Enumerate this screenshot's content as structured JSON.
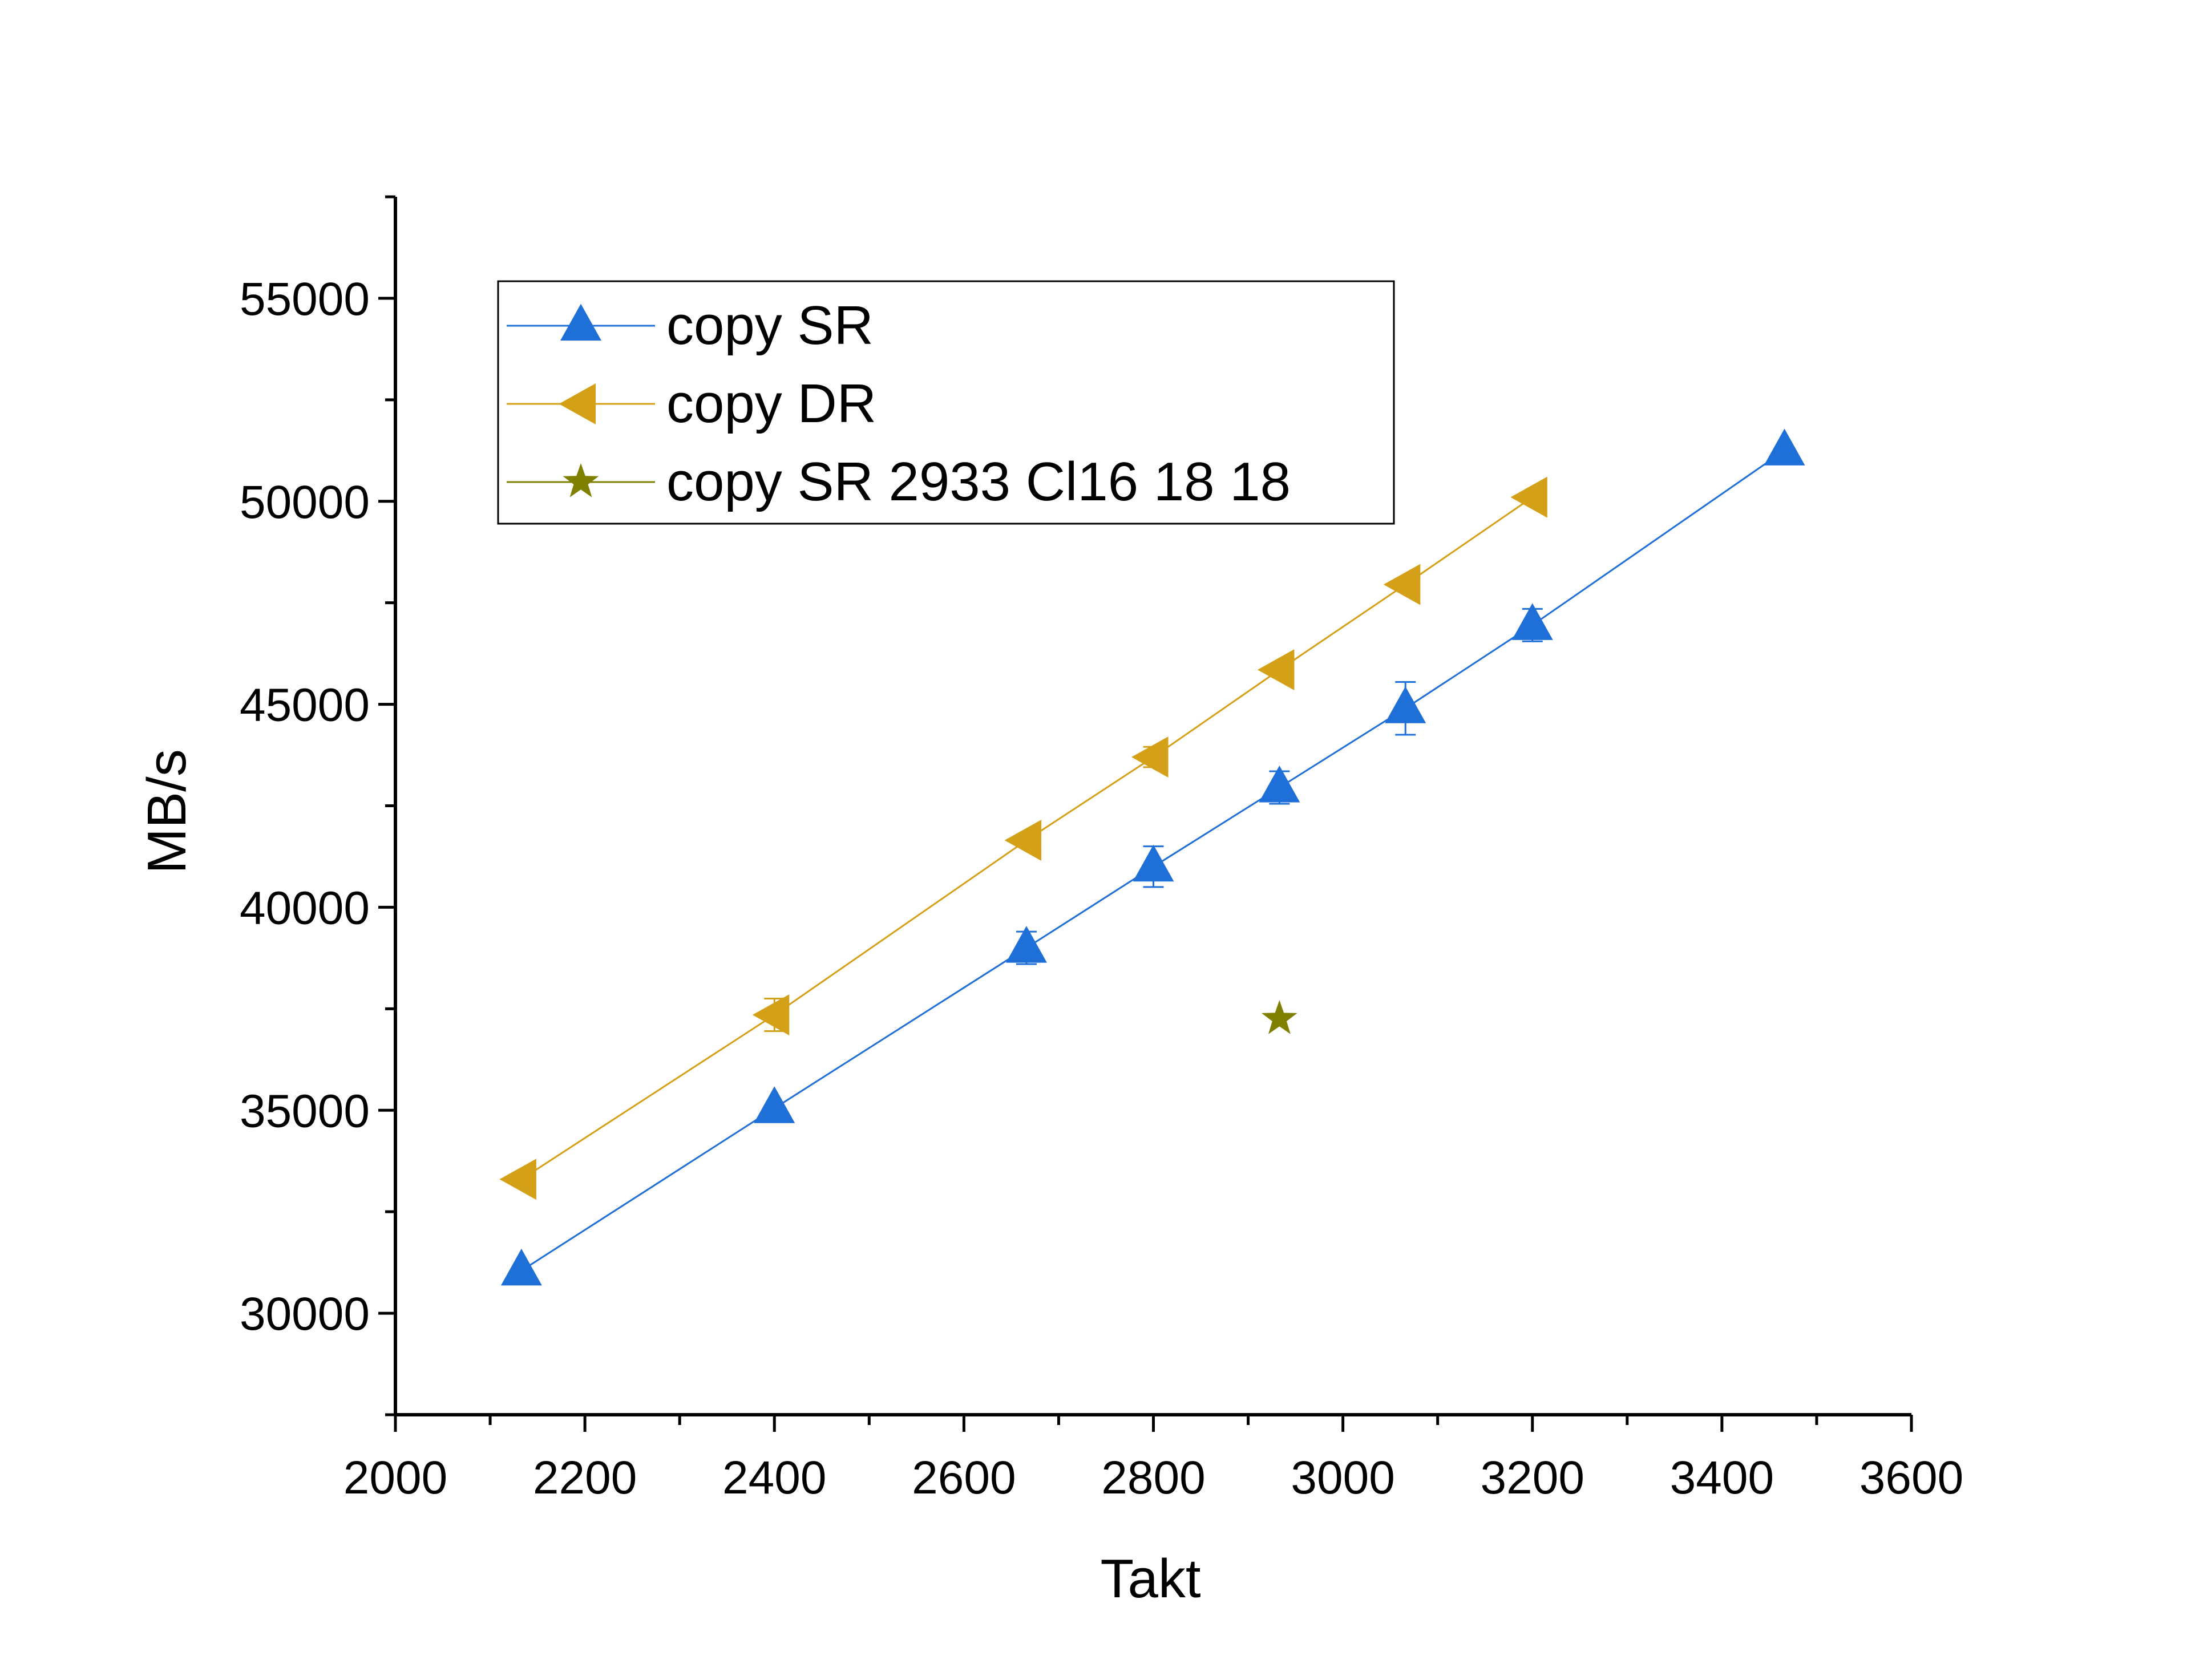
{
  "chart_data": {
    "type": "line",
    "title": "",
    "xlabel": "Takt",
    "ylabel": "MB/s",
    "xlim": [
      2000,
      3600
    ],
    "ylim": [
      27500,
      57500
    ],
    "x_ticks": [
      2000,
      2200,
      2400,
      2600,
      2800,
      3000,
      3200,
      3400,
      3600
    ],
    "y_ticks": [
      30000,
      35000,
      40000,
      45000,
      50000,
      55000
    ],
    "grid": false,
    "legend_position": "top-left",
    "series": [
      {
        "name": "copy SR",
        "color": "#1f6fd8",
        "marker": "triangle-up",
        "line": true,
        "points": [
          {
            "x": 2133,
            "y": 31050,
            "err": 0
          },
          {
            "x": 2400,
            "y": 35050,
            "err": 0
          },
          {
            "x": 2666,
            "y": 39000,
            "err": 400
          },
          {
            "x": 2800,
            "y": 41000,
            "err": 500
          },
          {
            "x": 2933,
            "y": 42950,
            "err": 400
          },
          {
            "x": 3066,
            "y": 44900,
            "err": 650
          },
          {
            "x": 3200,
            "y": 46950,
            "err": 400
          },
          {
            "x": 3466,
            "y": 51250,
            "err": 0
          }
        ]
      },
      {
        "name": "copy DR",
        "color": "#d4a017",
        "marker": "triangle-left",
        "line": true,
        "points": [
          {
            "x": 2133,
            "y": 33300,
            "err": 0
          },
          {
            "x": 2400,
            "y": 37350,
            "err": 400
          },
          {
            "x": 2666,
            "y": 41650,
            "err": 0
          },
          {
            "x": 2800,
            "y": 43700,
            "err": 250
          },
          {
            "x": 2933,
            "y": 45850,
            "err": 0
          },
          {
            "x": 3066,
            "y": 47950,
            "err": 0
          },
          {
            "x": 3200,
            "y": 50100,
            "err": 0
          }
        ]
      },
      {
        "name": "copy SR 2933 Cl16 18 18",
        "color": "#808000",
        "marker": "star",
        "line": false,
        "points": [
          {
            "x": 2933,
            "y": 37250,
            "err": 0
          }
        ]
      }
    ]
  }
}
